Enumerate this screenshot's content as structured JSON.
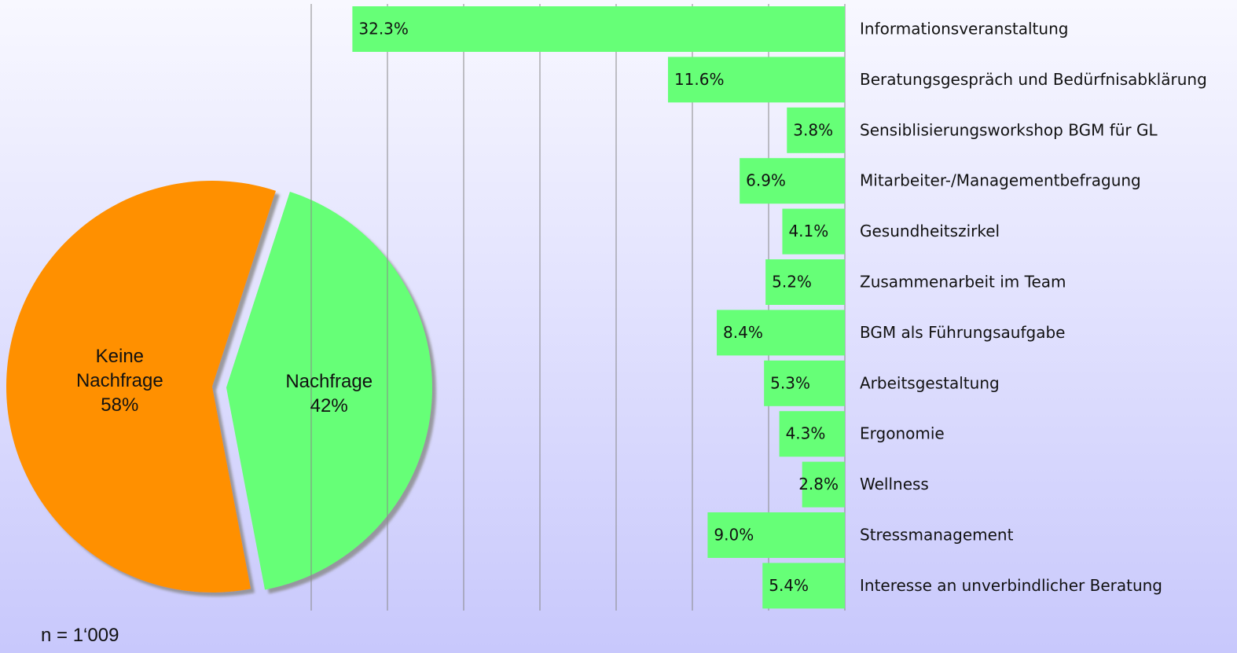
{
  "chart_data": [
    {
      "type": "pie",
      "categories": [
        "Keine Nachfrage",
        "Nachfrage"
      ],
      "values": [
        58,
        42
      ],
      "value_labels": [
        "58%",
        "42%"
      ],
      "colors": [
        "#ff9000",
        "#66ff77"
      ]
    },
    {
      "type": "barh",
      "categories": [
        "Informationsveranstaltung",
        "Beratungsgespräch und Bedürfnisabklärung",
        "Sensiblisierungsworkshop BGM für GL",
        "Mitarbeiter-/Managementbefragung",
        "Gesundheitszirkel",
        "Zusammenarbeit im Team",
        "BGM als Führungsaufgabe",
        "Arbeitsgestaltung",
        "Ergonomie",
        "Wellness",
        "Stressmanagement",
        "Interesse an unverbindlicher Beratung"
      ],
      "values": [
        32.3,
        11.6,
        3.8,
        6.9,
        4.1,
        5.2,
        8.4,
        5.3,
        4.3,
        2.8,
        9.0,
        5.4
      ],
      "value_labels": [
        "32.3%",
        "11.6%",
        "3.8%",
        "6.9%",
        "4.1%",
        "5.2%",
        "8.4%",
        "5.3%",
        "4.3%",
        "2.8%",
        "9.0%",
        "5.4%"
      ],
      "color": "#66ff77",
      "xlim": [
        0,
        35
      ],
      "xticks": [
        0,
        5,
        10,
        15,
        20,
        25,
        30,
        35
      ],
      "x_inverted": true,
      "grid": true
    }
  ],
  "footnote": "n = 1‘009"
}
